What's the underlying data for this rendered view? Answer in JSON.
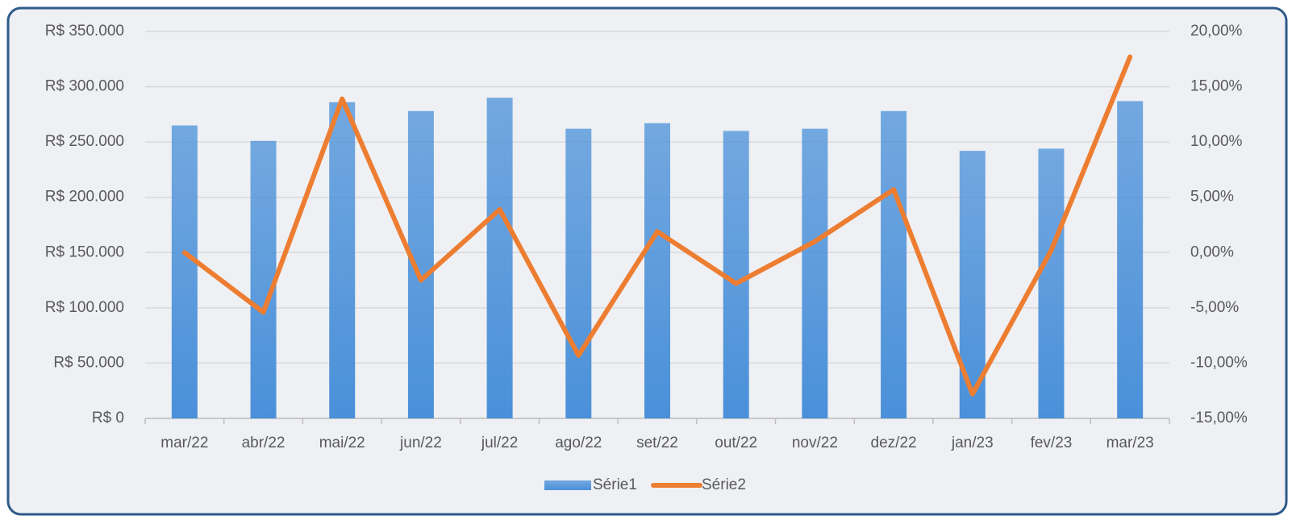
{
  "chart_data": {
    "type": "bar",
    "categories": [
      "mar/22",
      "abr/22",
      "mai/22",
      "jun/22",
      "jul/22",
      "ago/22",
      "set/22",
      "out/22",
      "nov/22",
      "dez/22",
      "jan/23",
      "fev/23",
      "mar/23"
    ],
    "series": [
      {
        "name": "Série1",
        "type": "bar",
        "color": "#4a90d9",
        "values": [
          265000,
          251000,
          286000,
          278000,
          290000,
          262000,
          267000,
          260000,
          262000,
          278000,
          242000,
          244000,
          287000
        ]
      },
      {
        "name": "Série2",
        "type": "line",
        "axis": "y2",
        "color": "#ed7d31",
        "values": [
          0,
          -5.4,
          13.9,
          -2.5,
          3.9,
          -9.3,
          1.9,
          -2.8,
          1.0,
          5.7,
          -12.8,
          0.2,
          17.7
        ]
      }
    ],
    "ylim": [
      0,
      350000
    ],
    "yticks": [
      {
        "value": 0,
        "label": "R$ 0"
      },
      {
        "value": 50000,
        "label": "R$ 50.000"
      },
      {
        "value": 100000,
        "label": "R$ 100.000"
      },
      {
        "value": 150000,
        "label": "R$ 150.000"
      },
      {
        "value": 200000,
        "label": "R$ 200.000"
      },
      {
        "value": 250000,
        "label": "R$ 250.000"
      },
      {
        "value": 300000,
        "label": "R$ 300.000"
      },
      {
        "value": 350000,
        "label": "R$ 350.000"
      }
    ],
    "y2lim": [
      -15,
      20
    ],
    "y2ticks": [
      {
        "value": -15,
        "label": "-15,00%"
      },
      {
        "value": -10,
        "label": "-10,00%"
      },
      {
        "value": -5,
        "label": "-5,00%"
      },
      {
        "value": 0,
        "label": "0,00%"
      },
      {
        "value": 5,
        "label": "5,00%"
      },
      {
        "value": 10,
        "label": "10,00%"
      },
      {
        "value": 15,
        "label": "15,00%"
      },
      {
        "value": 20,
        "label": "20,00%"
      }
    ],
    "grid": true,
    "legend": "bottom"
  }
}
